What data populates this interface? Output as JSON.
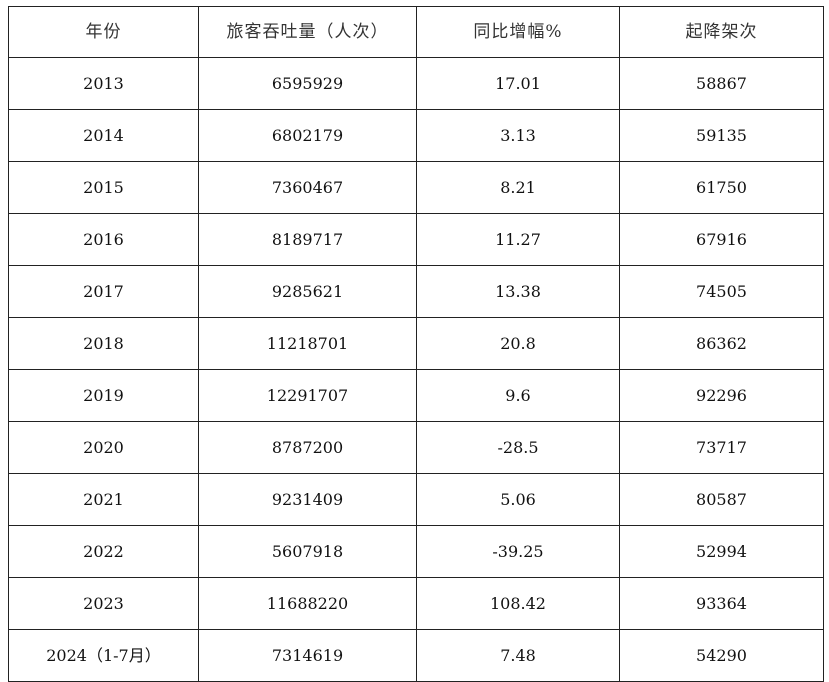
{
  "table": {
    "headers": [
      "年份",
      "旅客吞吐量（人次）",
      "同比增幅%",
      "起降架次"
    ],
    "rows": [
      [
        "2013",
        "6595929",
        "17.01",
        "58867"
      ],
      [
        "2014",
        "6802179",
        "3.13",
        "59135"
      ],
      [
        "2015",
        "7360467",
        "8.21",
        "61750"
      ],
      [
        "2016",
        "8189717",
        "11.27",
        "67916"
      ],
      [
        "2017",
        "9285621",
        "13.38",
        "74505"
      ],
      [
        "2018",
        "11218701",
        "20.8",
        "86362"
      ],
      [
        "2019",
        "12291707",
        "9.6",
        "92296"
      ],
      [
        "2020",
        "8787200",
        "-28.5",
        "73717"
      ],
      [
        "2021",
        "9231409",
        "5.06",
        "80587"
      ],
      [
        "2022",
        "5607918",
        "-39.25",
        "52994"
      ],
      [
        "2023",
        "11688220",
        "108.42",
        "93364"
      ],
      [
        "2024（1-7月）",
        "7314619",
        "7.48",
        "54290"
      ]
    ]
  }
}
